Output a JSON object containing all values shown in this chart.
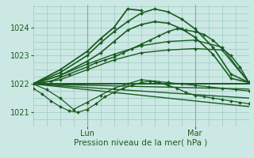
{
  "xlabel": "Pression niveau de la mer( hPa )",
  "bg_color": "#cce8e4",
  "grid_color": "#99ccbb",
  "line_color": "#1a5c22",
  "xlim": [
    0,
    48
  ],
  "ylim": [
    1020.5,
    1024.8
  ],
  "yticks": [
    1021,
    1022,
    1023,
    1024
  ],
  "xtick_positions": [
    12,
    36
  ],
  "xtick_labels": [
    "Lun",
    "Mar"
  ],
  "series": [
    {
      "x": [
        0,
        2,
        4,
        6,
        8,
        10,
        12,
        14,
        16,
        18,
        20,
        22,
        24,
        26,
        28,
        30,
        32,
        34,
        36,
        38,
        40,
        42,
        44,
        46,
        48
      ],
      "y": [
        1021.85,
        1021.65,
        1021.4,
        1021.2,
        1021.05,
        1021.0,
        1021.1,
        1021.3,
        1021.55,
        1021.7,
        1021.85,
        1021.95,
        1022.05,
        1022.1,
        1022.05,
        1021.95,
        1021.85,
        1021.7,
        1021.6,
        1021.55,
        1021.5,
        1021.45,
        1021.4,
        1021.35,
        1021.3
      ],
      "marker": true,
      "lw": 0.9
    },
    {
      "x": [
        0,
        48
      ],
      "y": [
        1022.0,
        1022.0
      ],
      "marker": false,
      "lw": 1.4
    },
    {
      "x": [
        0,
        48
      ],
      "y": [
        1022.0,
        1021.82
      ],
      "marker": false,
      "lw": 1.0
    },
    {
      "x": [
        0,
        48
      ],
      "y": [
        1022.0,
        1021.5
      ],
      "marker": false,
      "lw": 1.0
    },
    {
      "x": [
        0,
        48
      ],
      "y": [
        1022.0,
        1021.2
      ],
      "marker": false,
      "lw": 1.0
    },
    {
      "x": [
        0,
        3,
        6,
        9,
        12,
        15,
        18,
        21,
        24,
        27,
        30,
        33,
        36,
        39,
        42,
        45,
        48
      ],
      "y": [
        1022.0,
        1021.8,
        1021.5,
        1021.1,
        1021.35,
        1021.6,
        1021.85,
        1022.0,
        1022.15,
        1022.1,
        1022.05,
        1022.0,
        1021.95,
        1021.9,
        1021.85,
        1021.8,
        1021.75
      ],
      "marker": true,
      "lw": 0.9
    },
    {
      "x": [
        0,
        6,
        12,
        18,
        24,
        30,
        36,
        42,
        48
      ],
      "y": [
        1022.0,
        1022.15,
        1022.5,
        1022.85,
        1023.1,
        1023.2,
        1023.25,
        1023.2,
        1022.05
      ],
      "marker": true,
      "lw": 1.0
    },
    {
      "x": [
        0,
        6,
        12,
        18,
        24,
        30,
        36,
        42,
        48
      ],
      "y": [
        1022.0,
        1022.3,
        1022.7,
        1023.05,
        1023.35,
        1023.5,
        1023.55,
        1023.3,
        1022.05
      ],
      "marker": true,
      "lw": 1.0
    },
    {
      "x": [
        0,
        4,
        8,
        12,
        14,
        16,
        18,
        20,
        22,
        24,
        26,
        28,
        30,
        32,
        34,
        36,
        38,
        40,
        42,
        44,
        46,
        48
      ],
      "y": [
        1022.0,
        1022.1,
        1022.35,
        1022.6,
        1022.75,
        1022.85,
        1022.95,
        1023.1,
        1023.25,
        1023.4,
        1023.55,
        1023.7,
        1023.85,
        1023.95,
        1023.9,
        1023.85,
        1023.75,
        1023.55,
        1023.25,
        1023.0,
        1022.6,
        1022.05
      ],
      "marker": true,
      "lw": 1.1
    },
    {
      "x": [
        0,
        6,
        12,
        15,
        18,
        21,
        24,
        27,
        30,
        33,
        36,
        40,
        44,
        48
      ],
      "y": [
        1022.0,
        1022.3,
        1022.8,
        1023.1,
        1023.5,
        1023.9,
        1024.1,
        1024.2,
        1024.15,
        1023.95,
        1023.65,
        1023.05,
        1022.2,
        1022.05
      ],
      "marker": true,
      "lw": 1.2
    },
    {
      "x": [
        0,
        6,
        12,
        15,
        18,
        21,
        24,
        27,
        30,
        33,
        36,
        40,
        44,
        48
      ],
      "y": [
        1022.0,
        1022.4,
        1023.0,
        1023.45,
        1023.85,
        1024.2,
        1024.5,
        1024.65,
        1024.55,
        1024.3,
        1023.95,
        1023.3,
        1022.35,
        1022.05
      ],
      "marker": true,
      "lw": 1.2
    },
    {
      "x": [
        0,
        6,
        12,
        15,
        18,
        21,
        24
      ],
      "y": [
        1022.0,
        1022.5,
        1023.15,
        1023.6,
        1024.0,
        1024.65,
        1024.6
      ],
      "marker": true,
      "lw": 1.3
    }
  ]
}
